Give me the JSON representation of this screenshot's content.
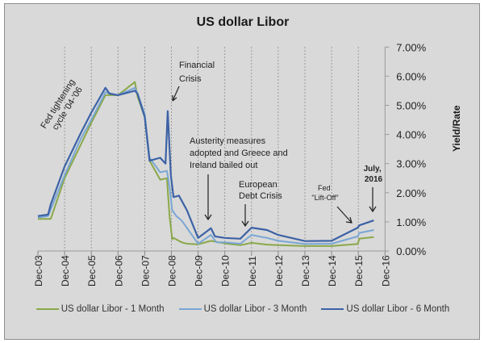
{
  "chart_data": {
    "type": "line",
    "title": "US dollar Libor",
    "xlabel": "",
    "ylabel": "Yield/Rate",
    "ylim": [
      0,
      7
    ],
    "yticks": [
      "0.00%",
      "1.00%",
      "2.00%",
      "3.00%",
      "4.00%",
      "5.00%",
      "6.00%",
      "7.00%"
    ],
    "xticks": [
      "Dec-03",
      "Dec-04",
      "Dec-05",
      "Dec-06",
      "Dec-07",
      "Dec-08",
      "Dec-09",
      "Dec-10",
      "Dec-11",
      "Dec-12",
      "Dec-13",
      "Dec-14",
      "Dec-15",
      "Dec-16"
    ],
    "grid": "vertical dashed at x ticks",
    "y_axis_position": "right",
    "legend_position": "bottom",
    "series": [
      {
        "name": "US dollar Libor - 1 Month",
        "color": "#8aa84a",
        "x": [
          2003.92,
          2004.4,
          2004.92,
          2005.5,
          2005.92,
          2006.45,
          2006.92,
          2007.55,
          2007.65,
          2007.92,
          2008.1,
          2008.5,
          2008.75,
          2008.85,
          2008.95,
          2009.0,
          2009.3,
          2009.5,
          2009.92,
          2010.4,
          2010.92,
          2011.5,
          2011.92,
          2012.5,
          2012.92,
          2013.92,
          2014.92,
          2015.9,
          2015.96,
          2016.5
        ],
        "values": [
          1.1,
          1.1,
          2.5,
          3.6,
          4.4,
          5.35,
          5.35,
          5.8,
          5.3,
          4.6,
          3.1,
          2.45,
          2.5,
          1.2,
          0.4,
          0.45,
          0.3,
          0.25,
          0.23,
          0.35,
          0.26,
          0.2,
          0.28,
          0.22,
          0.2,
          0.17,
          0.17,
          0.24,
          0.42,
          0.48
        ]
      },
      {
        "name": "US dollar Libor - 3 Month",
        "color": "#7aa6d4",
        "x": [
          2003.92,
          2004.3,
          2004.92,
          2005.5,
          2005.92,
          2006.45,
          2006.92,
          2007.55,
          2007.65,
          2007.92,
          2008.1,
          2008.5,
          2008.75,
          2008.85,
          2008.95,
          2009.1,
          2009.3,
          2009.92,
          2010.4,
          2010.6,
          2010.92,
          2011.5,
          2011.92,
          2012.5,
          2012.92,
          2013.92,
          2014.92,
          2015.9,
          2015.96,
          2016.5
        ],
        "values": [
          1.15,
          1.2,
          2.6,
          3.8,
          4.5,
          5.45,
          5.35,
          5.6,
          5.4,
          4.7,
          3.2,
          2.7,
          2.75,
          2.2,
          1.4,
          1.2,
          1.05,
          0.25,
          0.55,
          0.3,
          0.3,
          0.25,
          0.55,
          0.45,
          0.35,
          0.24,
          0.25,
          0.5,
          0.62,
          0.72
        ]
      },
      {
        "name": "US dollar Libor - 6 Month",
        "color": "#3c62a6",
        "x": [
          2003.92,
          2004.3,
          2004.4,
          2004.92,
          2005.5,
          2005.92,
          2006.45,
          2006.6,
          2006.92,
          2007.55,
          2007.65,
          2007.92,
          2008.1,
          2008.5,
          2008.7,
          2008.78,
          2008.9,
          2009.0,
          2009.2,
          2009.5,
          2009.92,
          2010.4,
          2010.55,
          2010.92,
          2011.5,
          2011.92,
          2012.5,
          2012.92,
          2013.92,
          2014.92,
          2015.9,
          2015.96,
          2016.5
        ],
        "values": [
          1.2,
          1.25,
          1.6,
          2.9,
          4.0,
          4.75,
          5.6,
          5.4,
          5.35,
          5.5,
          5.4,
          4.6,
          3.1,
          3.2,
          3.0,
          4.8,
          2.6,
          1.85,
          1.9,
          1.4,
          0.45,
          0.78,
          0.5,
          0.45,
          0.42,
          0.8,
          0.72,
          0.55,
          0.34,
          0.35,
          0.8,
          0.88,
          1.05
        ]
      }
    ],
    "annotations": [
      {
        "text": "Fed tightening cycle '04-'06",
        "rotation": -55
      },
      {
        "text": "Financial Crisis",
        "arrow_to": "Dec-08"
      },
      {
        "text": "Austerity measures adopted and Greece and Ireland bailed out",
        "arrow_to": "mid-2010"
      },
      {
        "text": "European Debt Crisis",
        "arrow_to": "late-2011"
      },
      {
        "text": "Fed \"Lift-Off\"",
        "arrow_to": "Dec-15"
      },
      {
        "text": "July, 2016",
        "arrow_to": "Jul-16",
        "bold": true
      }
    ]
  },
  "title": "US dollar Libor",
  "ylabel": "Yield/Rate",
  "legend": [
    {
      "label": "US dollar Libor - 1 Month",
      "color": "#8aa84a"
    },
    {
      "label": "US dollar Libor - 3 Month",
      "color": "#7aa6d4"
    },
    {
      "label": "US dollar Libor - 6 Month",
      "color": "#3c62a6"
    }
  ],
  "annotations": {
    "fed_tightening_1": "Fed tightening",
    "fed_tightening_2": "cycle '04-'06",
    "financial_crisis_1": "Financial",
    "financial_crisis_2": "Crisis",
    "austerity_1": "Austerity measures",
    "austerity_2": "adopted and Greece and",
    "austerity_3": "Ireland bailed out",
    "european_1": "European",
    "european_2": "Debt Crisis",
    "liftoff_1": "Fed",
    "liftoff_2": "\"Lift-Off\"",
    "july_1": "July,",
    "july_2": "2016"
  }
}
